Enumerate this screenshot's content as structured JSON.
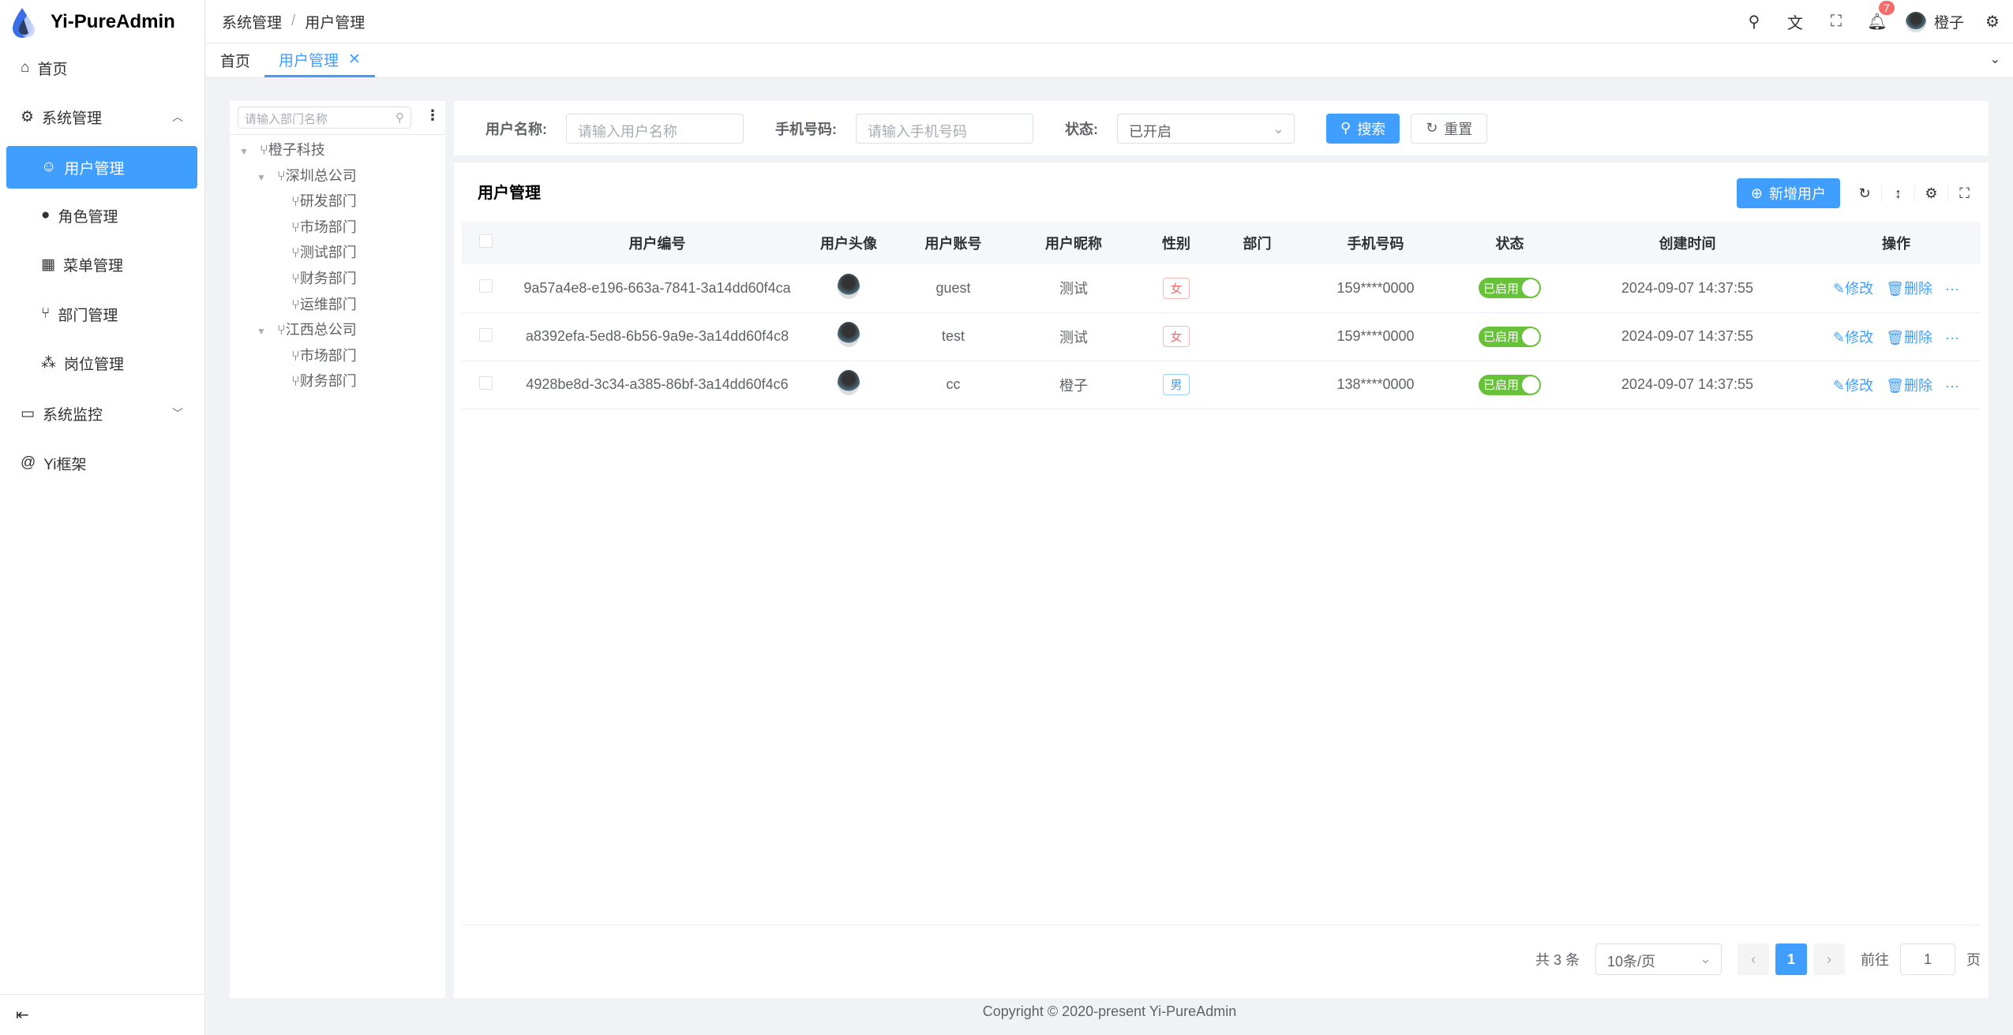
{
  "app": {
    "title": "Yi-PureAdmin",
    "copyright": "Copyright © 2020-present Yi-PureAdmin"
  },
  "sidebar": {
    "items": [
      {
        "label": "首页",
        "icon": "home-icon"
      },
      {
        "label": "系统管理",
        "icon": "gear-icon",
        "expanded": true
      },
      {
        "label": "用户管理",
        "icon": "user-icon",
        "active": true
      },
      {
        "label": "角色管理",
        "icon": "role-icon"
      },
      {
        "label": "菜单管理",
        "icon": "menu-grid-icon"
      },
      {
        "label": "部门管理",
        "icon": "branch-icon"
      },
      {
        "label": "岗位管理",
        "icon": "org-icon"
      },
      {
        "label": "系统监控",
        "icon": "monitor-icon"
      },
      {
        "label": "Yi框架",
        "icon": "at-icon"
      }
    ]
  },
  "header": {
    "breadcrumb": [
      "系统管理",
      "用户管理"
    ],
    "notification_count": "7",
    "username": "橙子"
  },
  "tabs": [
    {
      "label": "首页"
    },
    {
      "label": "用户管理",
      "active": true
    }
  ],
  "tree": {
    "placeholder": "请输入部门名称",
    "nodes": [
      {
        "label": "橙子科技",
        "level": 0,
        "expandable": true
      },
      {
        "label": "深圳总公司",
        "level": 1,
        "expandable": true
      },
      {
        "label": "研发部门",
        "level": 2
      },
      {
        "label": "市场部门",
        "level": 2
      },
      {
        "label": "测试部门",
        "level": 2
      },
      {
        "label": "财务部门",
        "level": 2
      },
      {
        "label": "运维部门",
        "level": 2
      },
      {
        "label": "江西总公司",
        "level": 1,
        "expandable": true
      },
      {
        "label": "市场部门",
        "level": 2
      },
      {
        "label": "财务部门",
        "level": 2
      }
    ]
  },
  "search": {
    "username_label": "用户名称:",
    "username_placeholder": "请输入用户名称",
    "phone_label": "手机号码:",
    "phone_placeholder": "请输入手机号码",
    "status_label": "状态:",
    "status_value": "已开启",
    "search_btn": "搜索",
    "reset_btn": "重置"
  },
  "table": {
    "title": "用户管理",
    "add_btn": "新增用户",
    "columns": [
      "用户编号",
      "用户头像",
      "用户账号",
      "用户昵称",
      "性别",
      "部门",
      "手机号码",
      "状态",
      "创建时间",
      "操作"
    ],
    "rows": [
      {
        "id": "9a57a4e8-e196-663a-7841-3a14dd60f4ca",
        "account": "guest",
        "nickname": "测试",
        "gender": "女",
        "dept": "",
        "phone": "159****0000",
        "status": "已启用",
        "created": "2024-09-07 14:37:55"
      },
      {
        "id": "a8392efa-5ed8-6b56-9a9e-3a14dd60f4c8",
        "account": "test",
        "nickname": "测试",
        "gender": "女",
        "dept": "",
        "phone": "159****0000",
        "status": "已启用",
        "created": "2024-09-07 14:37:55"
      },
      {
        "id": "4928be8d-3c34-a385-86bf-3a14dd60f4c6",
        "account": "cc",
        "nickname": "橙子",
        "gender": "男",
        "dept": "",
        "phone": "138****0000",
        "status": "已启用",
        "created": "2024-09-07 14:37:55"
      }
    ],
    "edit_label": "修改",
    "delete_label": "删除"
  },
  "pagination": {
    "total": "共 3 条",
    "page_size": "10条/页",
    "current": "1",
    "goto_label": "前往",
    "goto_value": "1",
    "page_suffix": "页"
  },
  "colors": {
    "primary": "#409eff",
    "success": "#67c23a",
    "female": "#f56c6c",
    "badge": "#f56c6c"
  }
}
